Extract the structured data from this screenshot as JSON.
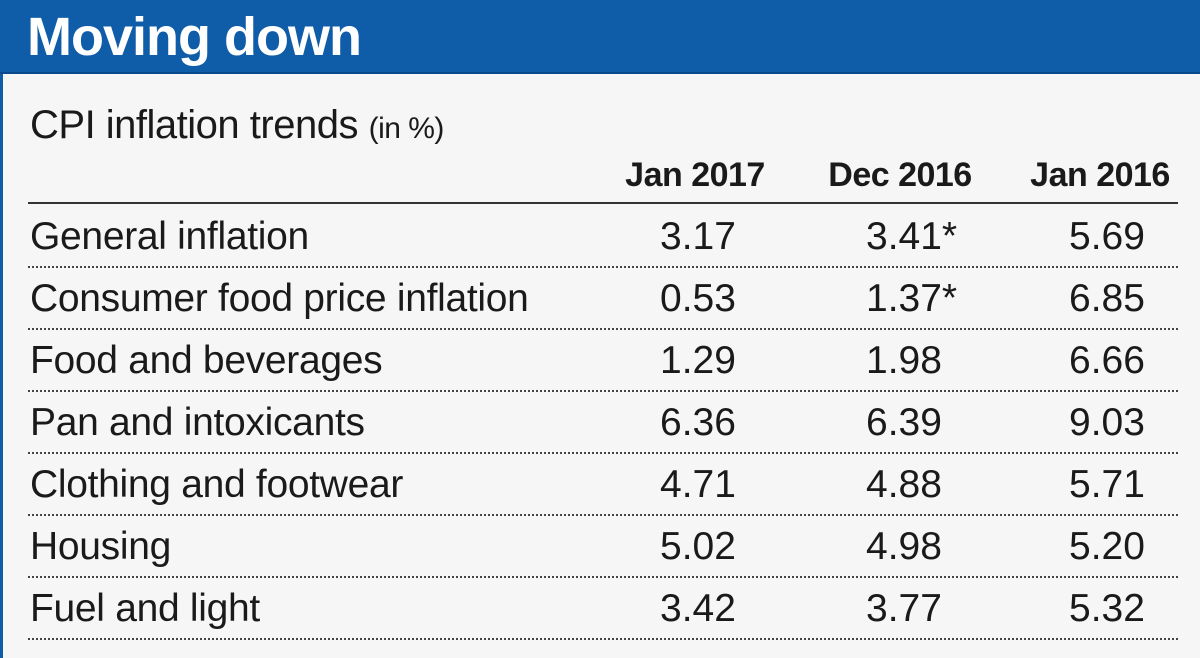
{
  "header": {
    "title": "Moving down"
  },
  "chart_data": {
    "type": "table",
    "title": "CPI inflation trends",
    "unit": "(in %)",
    "columns": [
      "Jan 2017",
      "Dec 2016",
      "Jan 2016"
    ],
    "rows": [
      {
        "label": "General inflation",
        "values": [
          "3.17",
          "3.41*",
          "5.69"
        ]
      },
      {
        "label": "Consumer food price inflation",
        "values": [
          "0.53",
          "1.37*",
          "6.85"
        ]
      },
      {
        "label": "Food and beverages",
        "values": [
          "1.29",
          "1.98",
          "6.66"
        ]
      },
      {
        "label": "Pan and intoxicants",
        "values": [
          "6.36",
          "6.39",
          "9.03"
        ]
      },
      {
        "label": "Clothing and footwear",
        "values": [
          "4.71",
          "4.88",
          "5.71"
        ]
      },
      {
        "label": "Housing",
        "values": [
          "5.02",
          "4.98",
          "5.20"
        ]
      },
      {
        "label": "Fuel and light",
        "values": [
          "3.42",
          "3.77",
          "5.32"
        ]
      }
    ]
  },
  "colors": {
    "banner": "#0f5ca8",
    "banner_text": "#ffffff",
    "background": "#f6f6f6",
    "text": "#1a1a1a"
  }
}
